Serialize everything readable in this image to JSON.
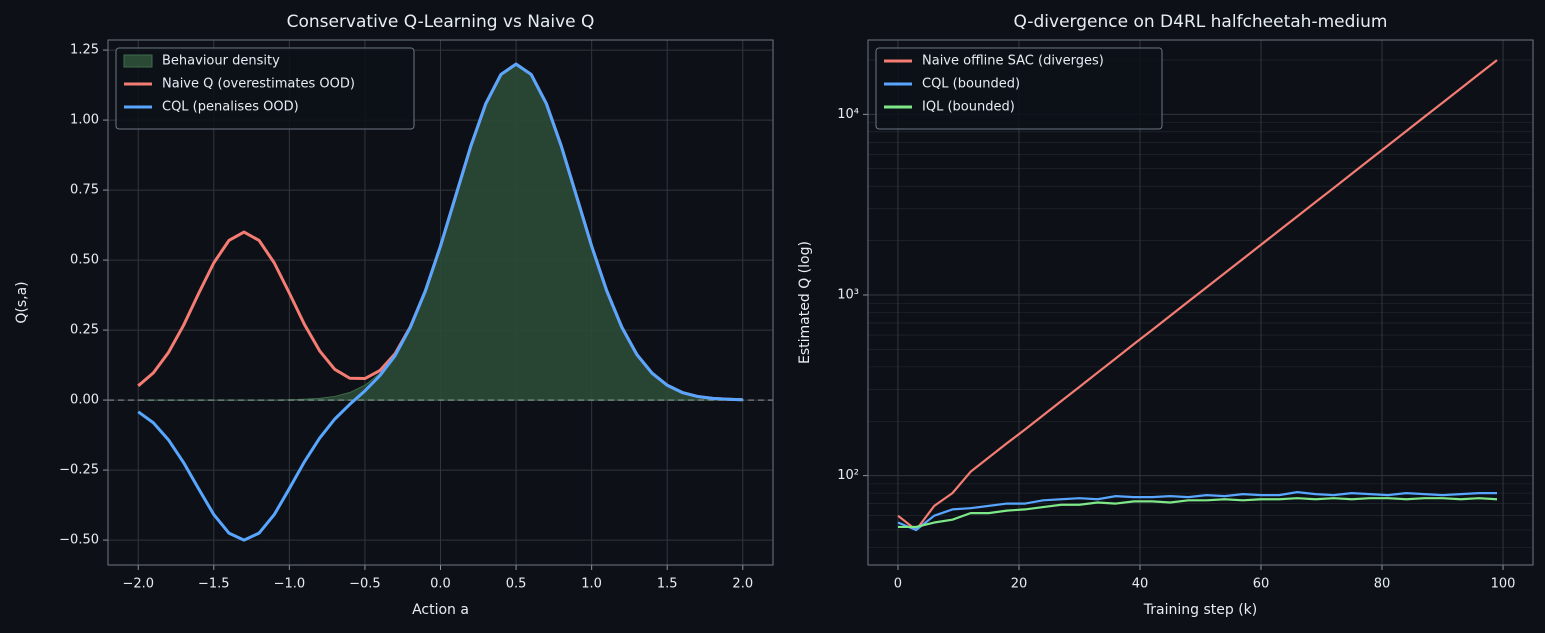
{
  "chart_data": [
    {
      "type": "line",
      "title": "Conservative Q-Learning vs Naive Q",
      "xlabel": "Action a",
      "ylabel": "Q(s,a)",
      "x": [
        -2,
        -1.9,
        -1.8,
        -1.7,
        -1.6,
        -1.5,
        -1.4,
        -1.3,
        -1.2,
        -1.1,
        -1,
        -0.9,
        -0.8,
        -0.7,
        -0.6,
        -0.5,
        -0.4,
        -0.3,
        -0.2,
        -0.1,
        0,
        0.1,
        0.2,
        0.3,
        0.4,
        0.5,
        0.6,
        0.7,
        0.8,
        0.9,
        1,
        1.1,
        1.2,
        1.3,
        1.4,
        1.5,
        1.6,
        1.7,
        1.8,
        1.9,
        2
      ],
      "series": [
        {
          "name": "Behaviour density",
          "style": "area",
          "color": "#2b4a36",
          "values": [
            0,
            0,
            0,
            0,
            0,
            0,
            0,
            0,
            0,
            0,
            0.001,
            0.003,
            0.006,
            0.013,
            0.027,
            0.053,
            0.096,
            0.162,
            0.26,
            0.39,
            0.55,
            0.728,
            0.906,
            1.059,
            1.163,
            1.2,
            1.163,
            1.059,
            0.906,
            0.728,
            0.55,
            0.39,
            0.26,
            0.162,
            0.096,
            0.053,
            0.027,
            0.013,
            0.006,
            0.003,
            0.001
          ]
        },
        {
          "name": "Naive Q (overestimates OOD)",
          "style": "line",
          "color": "#f47c72",
          "values": [
            0.051,
            0.097,
            0.17,
            0.267,
            0.381,
            0.49,
            0.57,
            0.6,
            0.57,
            0.49,
            0.382,
            0.27,
            0.176,
            0.11,
            0.078,
            0.077,
            0.106,
            0.166,
            0.261,
            0.39,
            0.55,
            0.728,
            0.906,
            1.059,
            1.163,
            1.2,
            1.163,
            1.059,
            0.906,
            0.728,
            0.55,
            0.39,
            0.26,
            0.162,
            0.096,
            0.053,
            0.027,
            0.013,
            0.006,
            0.003,
            0.001
          ]
        },
        {
          "name": "CQL (penalises OOD)",
          "style": "line",
          "color": "#58a6ff",
          "values": [
            -0.042,
            -0.081,
            -0.142,
            -0.223,
            -0.317,
            -0.409,
            -0.475,
            -0.5,
            -0.475,
            -0.409,
            -0.316,
            -0.22,
            -0.136,
            -0.068,
            -0.015,
            0.033,
            0.088,
            0.159,
            0.259,
            0.39,
            0.55,
            0.728,
            0.906,
            1.059,
            1.163,
            1.2,
            1.163,
            1.059,
            0.906,
            0.728,
            0.55,
            0.39,
            0.26,
            0.162,
            0.096,
            0.053,
            0.027,
            0.013,
            0.006,
            0.003,
            0.001
          ]
        }
      ],
      "hline": 0,
      "xlim": [
        -2.2,
        2.2
      ],
      "ylim": [
        -0.589,
        1.286
      ],
      "xticks": [
        {
          "value": -2,
          "label": "−2.0"
        },
        {
          "value": -1.5,
          "label": "−1.5"
        },
        {
          "value": -1,
          "label": "−1.0"
        },
        {
          "value": -0.5,
          "label": "−0.5"
        },
        {
          "value": 0,
          "label": "0.0"
        },
        {
          "value": 0.5,
          "label": "0.5"
        },
        {
          "value": 1,
          "label": "1.0"
        },
        {
          "value": 1.5,
          "label": "1.5"
        },
        {
          "value": 2,
          "label": "2.0"
        }
      ],
      "yticks": [
        {
          "value": -0.5,
          "label": "−0.50"
        },
        {
          "value": -0.25,
          "label": "−0.25"
        },
        {
          "value": 0,
          "label": "0.00"
        },
        {
          "value": 0.25,
          "label": "0.25"
        },
        {
          "value": 0.5,
          "label": "0.50"
        },
        {
          "value": 0.75,
          "label": "0.75"
        },
        {
          "value": 1,
          "label": "1.00"
        },
        {
          "value": 1.25,
          "label": "1.25"
        }
      ],
      "grid": true,
      "legend": "upper left"
    },
    {
      "type": "line",
      "title": "Q-divergence on D4RL halfcheetah-medium",
      "xlabel": "Training step (k)",
      "ylabel": "Estimated Q (log)",
      "x": [
        0,
        3,
        6,
        9,
        12,
        15,
        18,
        21,
        24,
        27,
        30,
        33,
        36,
        39,
        42,
        45,
        48,
        51,
        54,
        57,
        60,
        63,
        66,
        69,
        72,
        75,
        78,
        81,
        84,
        87,
        90,
        93,
        96,
        99
      ],
      "series": [
        {
          "name": "Naive offline SAC (diverges)",
          "style": "line",
          "color": "#f47c72",
          "values": [
            60,
            50,
            68,
            80,
            105,
            126,
            151,
            180,
            216,
            259,
            310,
            372,
            446,
            535,
            640,
            767,
            920,
            1102,
            1321,
            1582,
            1897,
            2274,
            2723,
            3266,
            3908,
            4688,
            5623,
            6730,
            8072,
            9683,
            11590,
            13900,
            16670,
            19950
          ]
        },
        {
          "name": "CQL (bounded)",
          "style": "line",
          "color": "#58a6ff",
          "values": [
            55,
            50,
            60,
            65,
            66,
            68,
            70,
            70,
            73,
            74,
            75,
            74,
            77,
            76,
            76,
            77,
            76,
            78,
            77,
            79,
            78,
            78,
            81,
            79,
            78,
            80,
            79,
            78,
            80,
            79,
            78,
            79,
            80,
            80
          ]
        },
        {
          "name": "IQL (bounded)",
          "style": "line",
          "color": "#7ee787",
          "values": [
            52,
            52,
            55,
            57,
            62,
            62,
            64,
            65,
            67,
            69,
            69,
            71,
            70,
            72,
            72,
            71,
            73,
            73,
            74,
            73,
            74,
            74,
            75,
            74,
            75,
            74,
            75,
            75,
            74,
            75,
            75,
            74,
            75,
            74
          ]
        }
      ],
      "log_y": true,
      "xlim": [
        -4.95,
        104.95
      ],
      "ylim": [
        32,
        25800
      ],
      "xticks": [
        0,
        20,
        40,
        60,
        80,
        100
      ],
      "yticks": [
        {
          "value": 100,
          "label": "10²"
        },
        {
          "value": 1000,
          "label": "10³"
        },
        {
          "value": 10000,
          "label": "10⁴"
        }
      ],
      "y_minor_ticks": [
        40,
        50,
        60,
        70,
        80,
        90,
        200,
        300,
        400,
        500,
        600,
        700,
        800,
        900,
        2000,
        3000,
        4000,
        5000,
        6000,
        7000,
        8000,
        9000,
        20000
      ],
      "grid": true,
      "legend": "upper left"
    }
  ]
}
